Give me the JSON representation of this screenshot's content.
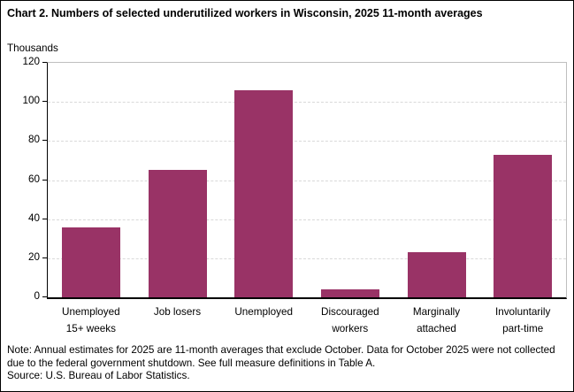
{
  "title": "Chart 2. Numbers of selected underutilized workers in Wisconsin, 2025 11-month averages",
  "chart_data": {
    "type": "bar",
    "title": "Chart 2. Numbers of selected underutilized workers in Wisconsin, 2025 11-month averages",
    "units_label": "Thousands",
    "categories": [
      "Unemployed\n15+ weeks",
      "Job losers",
      "Unemployed",
      "Discouraged\nworkers",
      "Marginally\nattached",
      "Involuntarily\npart-time"
    ],
    "values": [
      36,
      65,
      106,
      4,
      23,
      73
    ],
    "xlabel": "",
    "ylabel": "Thousands",
    "ylim": [
      0,
      120
    ],
    "yticks": [
      0,
      20,
      40,
      60,
      80,
      100,
      120
    ],
    "grid": "horizontal-dashed",
    "legend": "none",
    "bar_color": "#993366",
    "gridline_color": "#d9d9d9",
    "plot_border_color": "#bfbfbf",
    "axis_color": "#000000"
  },
  "footer": {
    "note": "Note: Annual estimates for 2025 are 11-month averages that exclude October. Data for October 2025 were not collected due to the federal government shutdown. See full measure definitions in Table A.",
    "source": "Source: U.S. Bureau of Labor Statistics."
  }
}
